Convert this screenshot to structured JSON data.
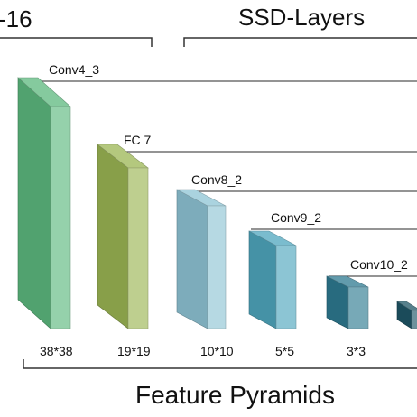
{
  "header": {
    "left_title": "-16",
    "right_title": "SSD-Layers"
  },
  "footer": {
    "title": "Feature Pyramids"
  },
  "colors": {
    "layer_1": "#5cb87e",
    "layer_2": "#9bb553",
    "layer_3": "#8ec4d4",
    "layer_4": "#4ea6bd",
    "layer_5": "#2e7a90",
    "layer_6": "#1f5566"
  },
  "layers": [
    {
      "label": "Conv4_3",
      "size": "38*38"
    },
    {
      "label": "FC 7",
      "size": "19*19"
    },
    {
      "label": "Conv8_2",
      "size": "10*10"
    },
    {
      "label": "Conv9_2",
      "size": "5*5"
    },
    {
      "label": "Conv10_2",
      "size": "3*3"
    },
    {
      "label": "",
      "size": ""
    }
  ]
}
